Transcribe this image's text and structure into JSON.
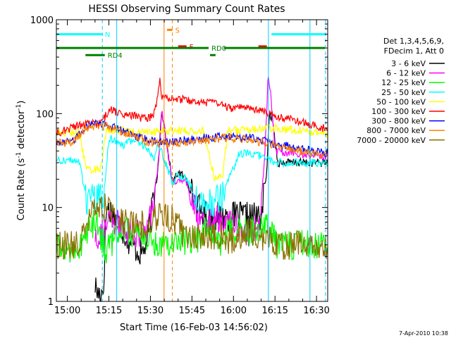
{
  "chart_data": {
    "type": "line",
    "title": "HESSI Observing Summary Count Rates",
    "xlabel": "Start Time (16-Feb-03 14:56:02)",
    "ylabel_main": "Count Rate (s",
    "ylabel_sup1": "-1",
    "ylabel_mid": " detector",
    "ylabel_sup2": "-1",
    "ylabel_end": ")",
    "footer": "7-Apr-2010 10:38",
    "x_unit": "minutes since 14:56:02",
    "xlim": [
      0,
      98
    ],
    "ylim": [
      1,
      1000
    ],
    "yscale": "log",
    "x_ticks": [
      {
        "t": 3.97,
        "label": "15:00"
      },
      {
        "t": 18.97,
        "label": "15:15"
      },
      {
        "t": 33.97,
        "label": "15:30"
      },
      {
        "t": 48.97,
        "label": "15:45"
      },
      {
        "t": 63.97,
        "label": "16:00"
      },
      {
        "t": 78.97,
        "label": "16:15"
      },
      {
        "t": 93.97,
        "label": "16:30"
      }
    ],
    "y_ticks": [
      {
        "v": 1,
        "label": "1"
      },
      {
        "v": 10,
        "label": "10"
      },
      {
        "v": 100,
        "label": "100"
      },
      {
        "v": 1000,
        "label": "1000"
      }
    ],
    "legend_header": [
      "Det 1,3,4,5,6,9,",
      "FDecim 1, Att 0"
    ],
    "series": [
      {
        "name": "3 - 6 keV",
        "color": "#000000",
        "points": [
          [
            14,
            1.5
          ],
          [
            15,
            1.2
          ],
          [
            17,
            1.3
          ],
          [
            18,
            10
          ],
          [
            20,
            9
          ],
          [
            23,
            6.5
          ],
          [
            26,
            4.5
          ],
          [
            29,
            3.6
          ],
          [
            31,
            3.2
          ],
          [
            33,
            4.5
          ],
          [
            35,
            12
          ],
          [
            36.5,
            23
          ],
          [
            37.5,
            60
          ],
          [
            38,
            110
          ],
          [
            42,
            18
          ],
          [
            44,
            24
          ],
          [
            47,
            20
          ],
          [
            51,
            10
          ],
          [
            55,
            8
          ],
          [
            60,
            8
          ],
          [
            66,
            8
          ],
          [
            70,
            8
          ],
          [
            74,
            8
          ],
          [
            76,
            25
          ],
          [
            77,
            100
          ],
          [
            78,
            90
          ],
          [
            80,
            30
          ],
          [
            95,
            30
          ],
          [
            98,
            30
          ]
        ]
      },
      {
        "name": "6 - 12 keV",
        "color": "#ff00ff",
        "points": [
          [
            14,
            5
          ],
          [
            17,
            5.5
          ],
          [
            19,
            7
          ],
          [
            23,
            6.5
          ],
          [
            26,
            5.5
          ],
          [
            30,
            5.2
          ],
          [
            33,
            6
          ],
          [
            35,
            12
          ],
          [
            36.5,
            23
          ],
          [
            37.5,
            55
          ],
          [
            38,
            110
          ],
          [
            42,
            18
          ],
          [
            44,
            20
          ],
          [
            47,
            18
          ],
          [
            51,
            8
          ],
          [
            56,
            7
          ],
          [
            62,
            8
          ],
          [
            66,
            6
          ],
          [
            70,
            5.5
          ],
          [
            73,
            6
          ],
          [
            75,
            25
          ],
          [
            76.5,
            260
          ],
          [
            77.5,
            150
          ],
          [
            79,
            40
          ],
          [
            95,
            35
          ],
          [
            98,
            35
          ]
        ]
      },
      {
        "name": "12 - 25 keV",
        "color": "#00ff00",
        "points": [
          [
            0,
            3.6
          ],
          [
            8,
            3.6
          ],
          [
            11,
            5.5
          ],
          [
            14,
            7
          ],
          [
            16,
            5
          ],
          [
            18,
            3.6
          ],
          [
            20,
            4
          ],
          [
            23,
            6
          ],
          [
            26,
            5.5
          ],
          [
            30,
            5
          ],
          [
            33,
            4.6
          ],
          [
            35,
            4.2
          ],
          [
            37,
            4.2
          ],
          [
            45,
            4.5
          ],
          [
            50,
            4.5
          ],
          [
            55,
            6
          ],
          [
            60,
            3.8
          ],
          [
            63,
            6
          ],
          [
            66,
            5.5
          ],
          [
            70,
            5.5
          ],
          [
            74,
            6
          ],
          [
            76,
            6
          ],
          [
            80,
            4
          ],
          [
            95,
            4
          ],
          [
            98,
            4
          ]
        ]
      },
      {
        "name": "25 - 50 keV",
        "color": "#00ffff",
        "points": [
          [
            0,
            32
          ],
          [
            8,
            32
          ],
          [
            11,
            12
          ],
          [
            14,
            12.5
          ],
          [
            17,
            12.5
          ],
          [
            19,
            56
          ],
          [
            23,
            45
          ],
          [
            28,
            52
          ],
          [
            31,
            48
          ],
          [
            34,
            38
          ],
          [
            35,
            32
          ],
          [
            37,
            48
          ],
          [
            42,
            18
          ],
          [
            44,
            22
          ],
          [
            47,
            20
          ],
          [
            51,
            13
          ],
          [
            56,
            11
          ],
          [
            60,
            13
          ],
          [
            66,
            38
          ],
          [
            72,
            36
          ],
          [
            76,
            34
          ],
          [
            80,
            30
          ],
          [
            95,
            30
          ],
          [
            98,
            30
          ]
        ]
      },
      {
        "name": "50 - 100 keV",
        "color": "#ffff00",
        "points": [
          [
            0,
            62
          ],
          [
            8,
            64
          ],
          [
            11,
            25
          ],
          [
            16,
            26
          ],
          [
            18,
            66
          ],
          [
            23,
            66
          ],
          [
            28,
            64
          ],
          [
            32,
            64
          ],
          [
            35,
            64
          ],
          [
            37,
            66
          ],
          [
            44,
            66
          ],
          [
            49,
            66
          ],
          [
            53,
            66
          ],
          [
            57,
            21
          ],
          [
            60,
            21
          ],
          [
            62,
            66
          ],
          [
            66,
            66
          ],
          [
            70,
            68
          ],
          [
            74,
            70
          ],
          [
            78,
            70
          ],
          [
            84,
            68
          ],
          [
            90,
            66
          ],
          [
            95,
            62
          ],
          [
            98,
            60
          ]
        ]
      },
      {
        "name": "100 - 300 keV",
        "color": "#ff0000",
        "points": [
          [
            0,
            62
          ],
          [
            8,
            75
          ],
          [
            12,
            78
          ],
          [
            16,
            78
          ],
          [
            19,
            110
          ],
          [
            23,
            100
          ],
          [
            28,
            95
          ],
          [
            31,
            90
          ],
          [
            33,
            88
          ],
          [
            35,
            95
          ],
          [
            36.5,
            140
          ],
          [
            37.5,
            240
          ],
          [
            38,
            150
          ],
          [
            44,
            145
          ],
          [
            48,
            135
          ],
          [
            53,
            130
          ],
          [
            57,
            130
          ],
          [
            62,
            115
          ],
          [
            66,
            115
          ],
          [
            70,
            112
          ],
          [
            74,
            110
          ],
          [
            77,
            100
          ],
          [
            81,
            92
          ],
          [
            85,
            88
          ],
          [
            90,
            78
          ],
          [
            95,
            72
          ],
          [
            98,
            68
          ]
        ]
      },
      {
        "name": "300 - 800 keV",
        "color": "#0000ff",
        "points": [
          [
            0,
            50
          ],
          [
            6,
            52
          ],
          [
            11,
            72
          ],
          [
            14,
            80
          ],
          [
            18,
            75
          ],
          [
            22,
            70
          ],
          [
            26,
            62
          ],
          [
            30,
            56
          ],
          [
            33,
            52
          ],
          [
            36,
            50
          ],
          [
            40,
            50
          ],
          [
            44,
            50
          ],
          [
            48,
            52
          ],
          [
            52,
            55
          ],
          [
            56,
            55
          ],
          [
            60,
            57
          ],
          [
            64,
            57
          ],
          [
            70,
            55
          ],
          [
            76,
            50
          ],
          [
            80,
            47
          ],
          [
            84,
            45
          ],
          [
            88,
            42
          ],
          [
            92,
            40
          ],
          [
            95,
            39
          ],
          [
            98,
            38
          ]
        ]
      },
      {
        "name": "800 - 7000 keV",
        "color": "#ff8000",
        "points": [
          [
            0,
            48
          ],
          [
            6,
            50
          ],
          [
            11,
            70
          ],
          [
            14,
            76
          ],
          [
            18,
            73
          ],
          [
            22,
            68
          ],
          [
            26,
            60
          ],
          [
            30,
            55
          ],
          [
            33,
            50
          ],
          [
            36,
            48
          ],
          [
            40,
            48
          ],
          [
            44,
            48
          ],
          [
            48,
            50
          ],
          [
            52,
            52
          ],
          [
            56,
            53
          ],
          [
            60,
            55
          ],
          [
            64,
            55
          ],
          [
            70,
            53
          ],
          [
            76,
            48
          ],
          [
            80,
            45
          ],
          [
            84,
            43
          ],
          [
            88,
            40
          ],
          [
            92,
            38
          ],
          [
            95,
            37
          ],
          [
            98,
            36
          ]
        ]
      },
      {
        "name": "7000 - 20000 keV",
        "color": "#8b7000",
        "points": [
          [
            0,
            4
          ],
          [
            8,
            4
          ],
          [
            11,
            6.5
          ],
          [
            14,
            9.5
          ],
          [
            18,
            10
          ],
          [
            21,
            9
          ],
          [
            24,
            7.5
          ],
          [
            27,
            6.5
          ],
          [
            30,
            6.5
          ],
          [
            33,
            7
          ],
          [
            35,
            7.5
          ],
          [
            37,
            8
          ],
          [
            42,
            8
          ],
          [
            46,
            5
          ],
          [
            50,
            5
          ],
          [
            53,
            5
          ],
          [
            57,
            5
          ],
          [
            60,
            5
          ],
          [
            63,
            4.3
          ],
          [
            66,
            5
          ],
          [
            70,
            5.5
          ],
          [
            74,
            5
          ],
          [
            76,
            4.5
          ],
          [
            80,
            4
          ],
          [
            95,
            4
          ],
          [
            98,
            4
          ]
        ]
      }
    ],
    "vertical_markers": [
      {
        "t": 16.6,
        "color": "#00ccff",
        "dashed": true
      },
      {
        "t": 21.8,
        "color": "#00ccff",
        "dashed": false
      },
      {
        "t": 38.9,
        "color": "#ff8000",
        "dashed": false
      },
      {
        "t": 41.9,
        "color": "#ff8000",
        "dashed": true
      },
      {
        "t": 76.6,
        "color": "#00ccff",
        "dashed": false
      },
      {
        "t": 91.6,
        "color": "#00ccff",
        "dashed": false
      },
      {
        "t": 97.2,
        "color": "#00ccff",
        "dashed": true
      }
    ],
    "status_bars": [
      {
        "label": "N",
        "color": "#00ffff",
        "y": 700,
        "segments": [
          [
            0,
            16.5
          ],
          [
            77.7,
            97.2
          ]
        ]
      },
      {
        "label": "S",
        "color": "#ff8000",
        "y": 780,
        "segments": [
          [
            40.0,
            41.9
          ]
        ]
      },
      {
        "label": "F",
        "color": "#ff0000",
        "y": 520,
        "segments": [
          [
            44.0,
            47.0
          ],
          [
            73.0,
            76.0
          ]
        ]
      },
      {
        "label": "RD0",
        "color": "#008000",
        "y": 500,
        "segments": [
          [
            0,
            55.0
          ],
          [
            60.5,
            97.0
          ]
        ]
      },
      {
        "label": "RD4",
        "color": "#008000",
        "y": 420,
        "segments": [
          [
            10.5,
            17.5
          ],
          [
            55.5,
            57.5
          ]
        ]
      }
    ]
  }
}
